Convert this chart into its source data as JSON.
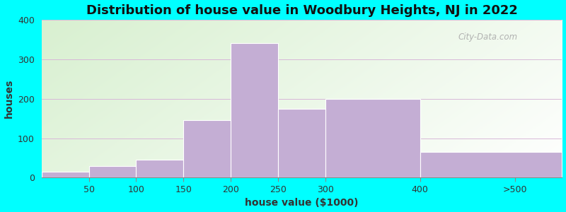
{
  "title": "Distribution of house value in Woodbury Heights, NJ in 2022",
  "xlabel": "house value ($1000)",
  "ylabel": "houses",
  "bin_edges": [
    0,
    50,
    100,
    150,
    200,
    250,
    300,
    400,
    550
  ],
  "tick_labels": [
    "50",
    "100",
    "150",
    "200",
    "250",
    "300",
    "400",
    ">500"
  ],
  "tick_positions": [
    50,
    100,
    150,
    200,
    250,
    300,
    400,
    500
  ],
  "bar_heights": [
    15,
    30,
    45,
    145,
    340,
    175,
    200,
    65
  ],
  "bar_color": "#c4aed4",
  "bar_edgecolor": "#ffffff",
  "ylim": [
    0,
    400
  ],
  "xlim": [
    0,
    550
  ],
  "yticks": [
    0,
    100,
    200,
    300,
    400
  ],
  "background_outer": "#00FFFF",
  "grid_color": "#d8b8d8",
  "title_fontsize": 13,
  "axis_label_fontsize": 10,
  "tick_fontsize": 9,
  "watermark_text": "City-Data.com"
}
